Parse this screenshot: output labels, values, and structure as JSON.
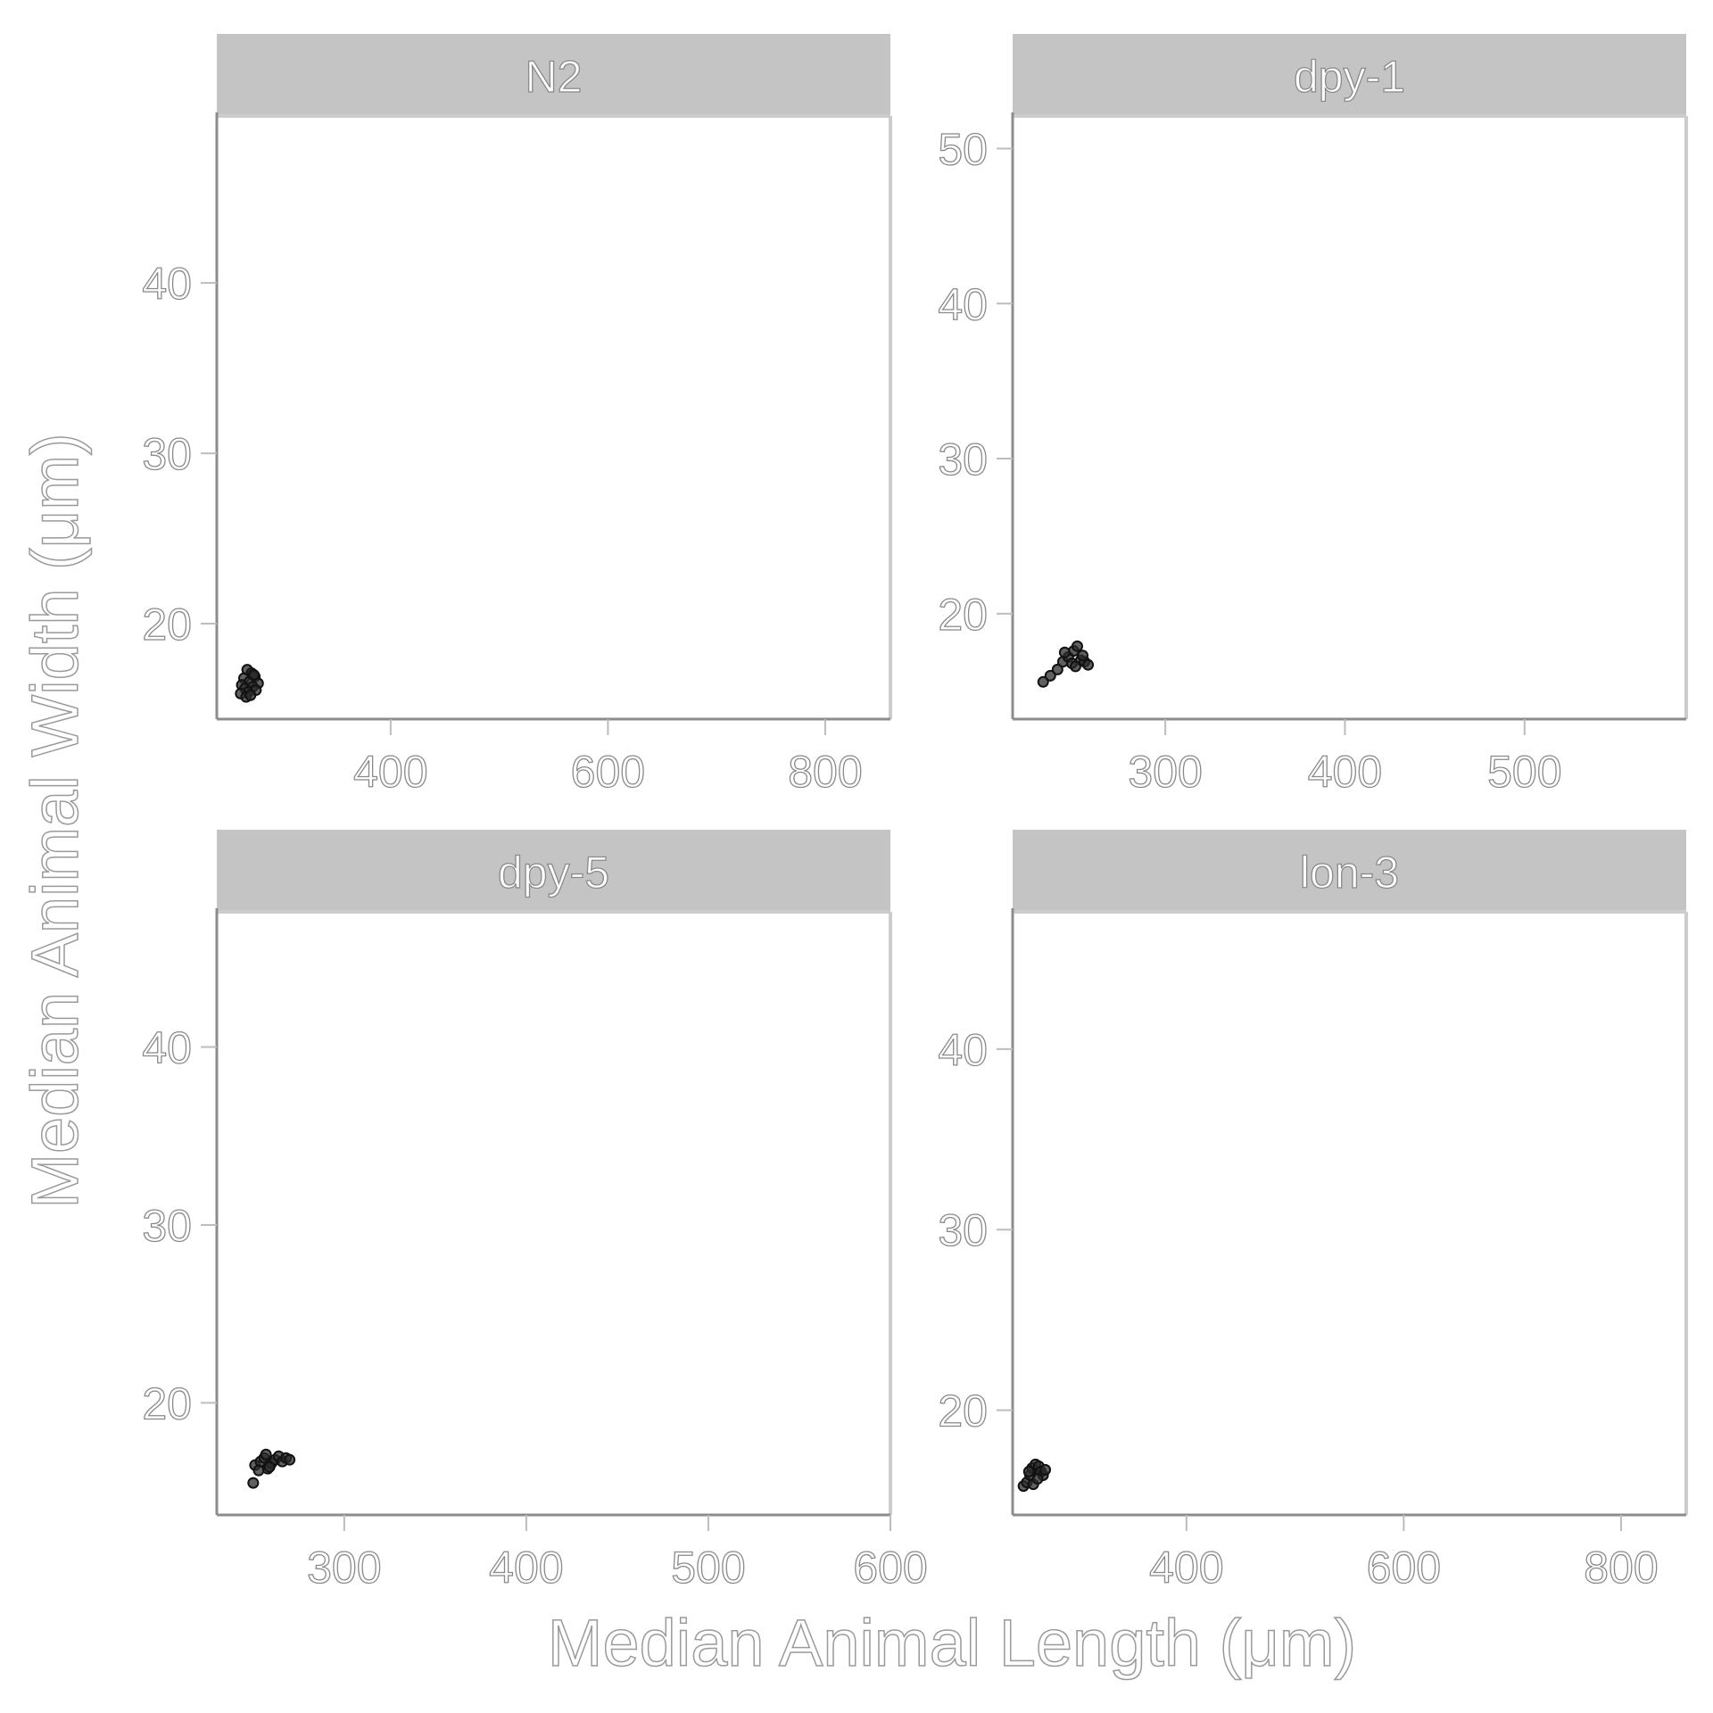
{
  "chart_data": {
    "type": "scatter",
    "layout": "facet-grid-2x2",
    "xlabel": "Median Animal Length (μm)",
    "ylabel": "Median Animal Width (μm)",
    "colors": {
      "strip": "#c4c4c4",
      "point": "#2b2b2b",
      "background": "#ffffff"
    },
    "panels": [
      {
        "label": "N2",
        "xlim": [
          240,
          860
        ],
        "ylim": [
          14.4,
          49.8
        ],
        "xticks": [
          400,
          600,
          800
        ],
        "yticks": [
          20,
          30,
          40
        ],
        "points": [
          {
            "x": 268,
            "y": 17.3
          },
          {
            "x": 272,
            "y": 17.1
          },
          {
            "x": 265,
            "y": 16.8
          },
          {
            "x": 275,
            "y": 16.9
          },
          {
            "x": 270,
            "y": 16.6
          },
          {
            "x": 263,
            "y": 16.4
          },
          {
            "x": 278,
            "y": 16.5
          },
          {
            "x": 266,
            "y": 16.2
          },
          {
            "x": 273,
            "y": 16.3
          },
          {
            "x": 269,
            "y": 16.0
          },
          {
            "x": 276,
            "y": 16.1
          },
          {
            "x": 262,
            "y": 15.9
          },
          {
            "x": 267,
            "y": 15.7
          },
          {
            "x": 271,
            "y": 15.8
          },
          {
            "x": 274,
            "y": 17.0
          }
        ]
      },
      {
        "label": "dpy-1",
        "xlim": [
          215,
          590
        ],
        "ylim": [
          13.2,
          52.1
        ],
        "xticks": [
          300,
          400,
          500
        ],
        "yticks": [
          20,
          30,
          40,
          50
        ],
        "points": [
          {
            "x": 232,
            "y": 15.6
          },
          {
            "x": 236,
            "y": 16.0
          },
          {
            "x": 240,
            "y": 16.4
          },
          {
            "x": 243,
            "y": 16.9
          },
          {
            "x": 246,
            "y": 17.2
          },
          {
            "x": 249,
            "y": 17.6
          },
          {
            "x": 251,
            "y": 17.9
          },
          {
            "x": 248,
            "y": 16.8
          },
          {
            "x": 253,
            "y": 17.0
          },
          {
            "x": 255,
            "y": 16.9
          },
          {
            "x": 257,
            "y": 16.7
          },
          {
            "x": 244,
            "y": 17.5
          },
          {
            "x": 250,
            "y": 16.6
          },
          {
            "x": 254,
            "y": 17.3
          }
        ]
      },
      {
        "label": "dpy-5",
        "xlim": [
          230,
          600
        ],
        "ylim": [
          13.7,
          47.6
        ],
        "xticks": [
          300,
          400,
          500,
          600
        ],
        "yticks": [
          20,
          30,
          40
        ],
        "points": [
          {
            "x": 250,
            "y": 15.5
          },
          {
            "x": 251,
            "y": 16.5
          },
          {
            "x": 254,
            "y": 16.7
          },
          {
            "x": 256,
            "y": 16.9
          },
          {
            "x": 258,
            "y": 16.3
          },
          {
            "x": 260,
            "y": 16.6
          },
          {
            "x": 262,
            "y": 16.8
          },
          {
            "x": 264,
            "y": 17.0
          },
          {
            "x": 266,
            "y": 16.7
          },
          {
            "x": 268,
            "y": 16.9
          },
          {
            "x": 270,
            "y": 16.8
          },
          {
            "x": 257,
            "y": 17.1
          },
          {
            "x": 253,
            "y": 16.2
          },
          {
            "x": 259,
            "y": 16.4
          }
        ]
      },
      {
        "label": "lon-3",
        "xlim": [
          240,
          860
        ],
        "ylim": [
          14.2,
          47.6
        ],
        "xticks": [
          400,
          600,
          800
        ],
        "yticks": [
          20,
          30,
          40
        ],
        "points": [
          {
            "x": 250,
            "y": 15.8
          },
          {
            "x": 253,
            "y": 16.0
          },
          {
            "x": 256,
            "y": 16.4
          },
          {
            "x": 258,
            "y": 16.8
          },
          {
            "x": 261,
            "y": 17.0
          },
          {
            "x": 264,
            "y": 16.9
          },
          {
            "x": 266,
            "y": 16.6
          },
          {
            "x": 268,
            "y": 16.4
          },
          {
            "x": 270,
            "y": 16.7
          },
          {
            "x": 259,
            "y": 15.9
          },
          {
            "x": 263,
            "y": 16.2
          },
          {
            "x": 255,
            "y": 16.6
          }
        ]
      }
    ]
  }
}
